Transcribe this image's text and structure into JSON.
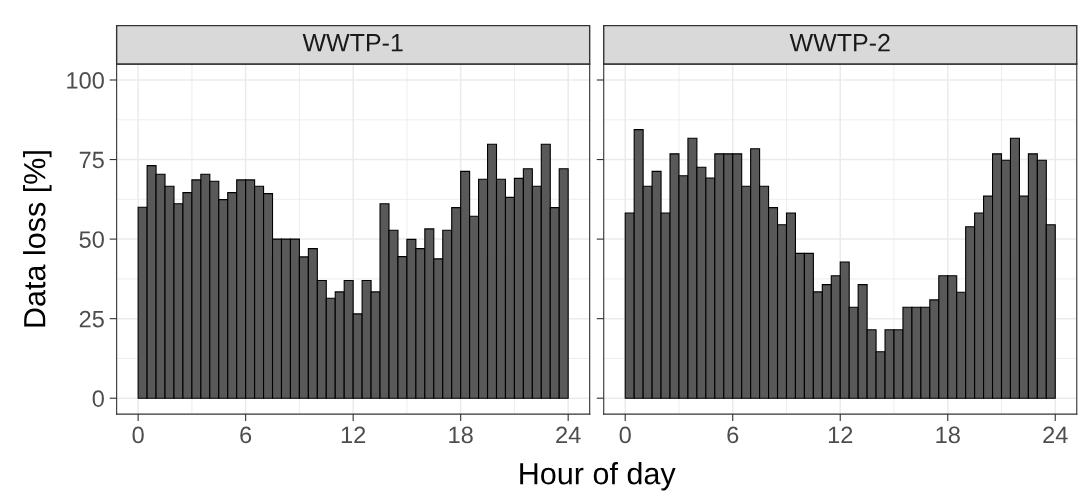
{
  "chart_data": [
    {
      "type": "histogram",
      "title": "WWTP-1",
      "xlabel": "Hour of day",
      "ylabel": "Data loss [%]",
      "color": "#595959",
      "grid": true,
      "bins": [
        0,
        0.5,
        1,
        1.5,
        2,
        2.5,
        3,
        3.5,
        4,
        4.5,
        5,
        5.5,
        6,
        6.5,
        7,
        7.5,
        8,
        8.5,
        9,
        9.5,
        10,
        10.5,
        11,
        11.5,
        12,
        12.5,
        13,
        13.5,
        14,
        14.5,
        15,
        15.5,
        16,
        16.5,
        17,
        17.5,
        18,
        18.5,
        19,
        19.5,
        20,
        20.5,
        21,
        21.5,
        22,
        22.5,
        23,
        23.5,
        24
      ],
      "values": [
        60,
        73.1,
        70.4,
        66.6,
        61.1,
        64.6,
        68.6,
        70.4,
        68.2,
        62.4,
        64.6,
        68.6,
        68.6,
        66.6,
        64.3,
        50,
        50,
        50,
        44.4,
        47,
        37,
        31.4,
        33.4,
        37,
        26.5,
        37,
        33.4,
        61.1,
        52.8,
        44.5,
        49.9,
        47,
        53.2,
        43.8,
        52.8,
        59.9,
        71.3,
        57.2,
        68.8,
        79.8,
        68.8,
        63.1,
        69.1,
        72.1,
        66.6,
        79.8,
        59.9,
        72.1
      ],
      "xlim": [
        -1.2,
        25.2
      ],
      "xticks": [
        0,
        6,
        12,
        18,
        24
      ],
      "ylim": [
        -5,
        105
      ],
      "yticks": [
        0,
        25,
        50,
        75,
        100
      ]
    },
    {
      "type": "histogram",
      "title": "WWTP-2",
      "color": "#595959",
      "grid": true,
      "tick_labels": "x",
      "bins": [
        0,
        0.5,
        1,
        1.5,
        2,
        2.5,
        3,
        3.5,
        4,
        4.5,
        5,
        5.5,
        6,
        6.5,
        7,
        7.5,
        8,
        8.5,
        9,
        9.5,
        10,
        10.5,
        11,
        11.5,
        12,
        12.5,
        13,
        13.5,
        14,
        14.5,
        15,
        15.5,
        16,
        16.5,
        17,
        17.5,
        18,
        18.5,
        19,
        19.5,
        20,
        20.5,
        21,
        21.5,
        22,
        22.5,
        23,
        23.5,
        24
      ],
      "values": [
        58.2,
        84.4,
        66.6,
        71.3,
        58.2,
        76.8,
        69.9,
        81.7,
        72.6,
        69.2,
        76.8,
        76.8,
        76.8,
        66.6,
        78.4,
        66.6,
        59.9,
        54.5,
        58.2,
        45.5,
        45.5,
        33.4,
        35.7,
        38.5,
        42.8,
        28.6,
        35.7,
        21.5,
        14.6,
        21.5,
        21.5,
        28.6,
        28.6,
        28.6,
        30.9,
        38.5,
        38.5,
        33.3,
        53.9,
        58.2,
        63.5,
        76.8,
        74.8,
        81.7,
        63.5,
        76.8,
        74.8,
        54.5
      ],
      "xlim": [
        -1.2,
        25.2
      ],
      "xticks": [
        0,
        6,
        12,
        18,
        24
      ],
      "ylim": [
        -5,
        105
      ],
      "yticks": [
        0,
        25,
        50,
        75,
        100
      ]
    }
  ]
}
